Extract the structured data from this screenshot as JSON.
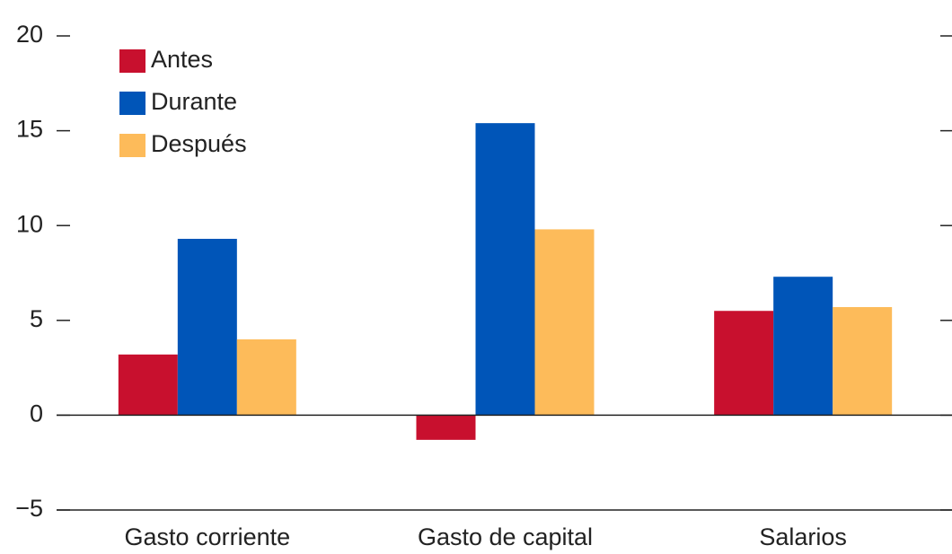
{
  "chart_data": {
    "type": "bar",
    "categories": [
      "Gasto corriente",
      "Gasto de capital",
      "Salarios"
    ],
    "series": [
      {
        "name": "Antes",
        "color": "#c8102e",
        "values": [
          3.2,
          -1.3,
          5.5
        ]
      },
      {
        "name": "Durante",
        "color": "#0055b8",
        "values": [
          9.3,
          15.4,
          7.3
        ]
      },
      {
        "name": "Después",
        "color": "#fdbb5a",
        "values": [
          4.0,
          9.8,
          5.7
        ]
      }
    ],
    "ylim": [
      -5,
      20
    ],
    "yticks": [
      {
        "value": -5,
        "label": "−5"
      },
      0,
      5,
      10,
      15,
      20
    ],
    "legend": "upper left"
  }
}
